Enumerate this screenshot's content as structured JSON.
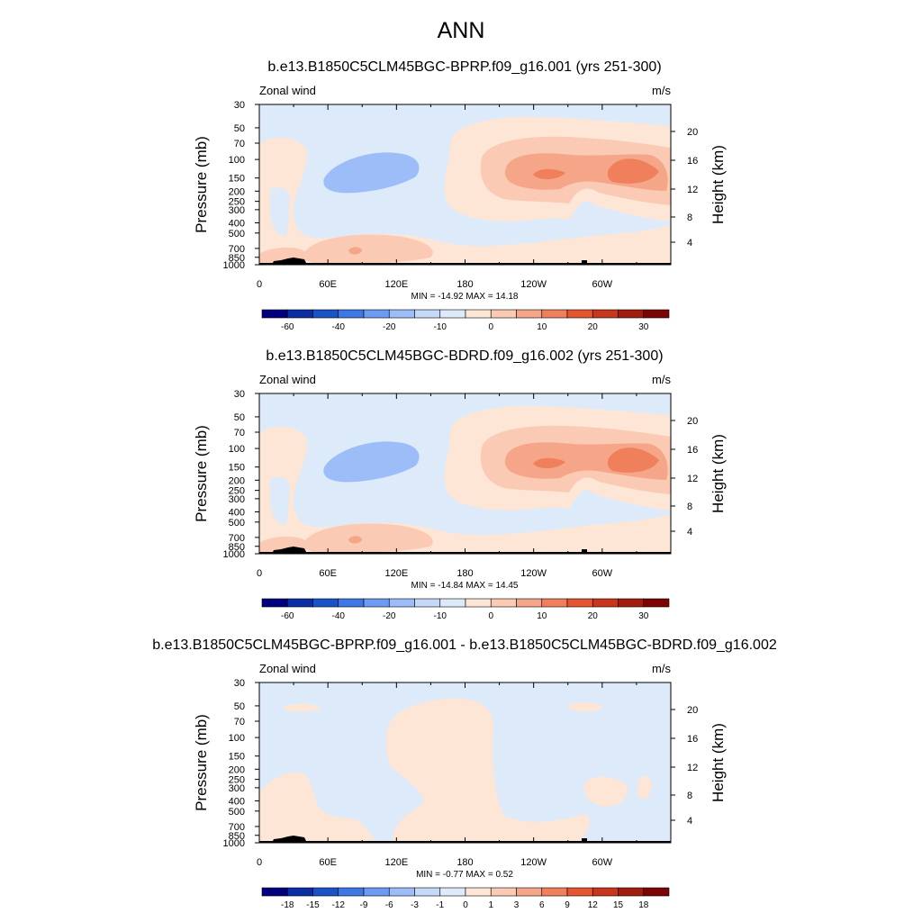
{
  "figure": {
    "title": "ANN"
  },
  "chart_data": [
    {
      "type": "heatmap",
      "title": "b.e13.B1850C5CLM45BGC-BPRP.f09_g16.001 (yrs 251-300)",
      "left_label": "Zonal wind",
      "right_label": "m/s",
      "ylabel": "Pressure (mb)",
      "y2label": "Height (km)",
      "xticks": [
        "0",
        "60E",
        "120E",
        "180",
        "120W",
        "60W"
      ],
      "yticks": [
        "30",
        "50",
        "70",
        "100",
        "150",
        "200",
        "250",
        "300",
        "400",
        "500",
        "700",
        "850",
        "1000"
      ],
      "y2ticks": [
        "4",
        "8",
        "12",
        "16",
        "20"
      ],
      "stats": "MIN = -14.92  MAX =  14.18",
      "min": -14.92,
      "max": 14.18,
      "colorbar_labels": [
        "-60",
        "-40",
        "-20",
        "-10",
        "0",
        "10",
        "20",
        "30"
      ],
      "colors": [
        "#00007f",
        "#0a2fa5",
        "#1a52c8",
        "#3e78e4",
        "#6b9bf2",
        "#9dbdf8",
        "#c5daf9",
        "#dceafa",
        "#fde6d6",
        "#fbcab5",
        "#f6a688",
        "#f07f5b",
        "#e45530",
        "#c8361b",
        "#a21d0d",
        "#7c0404"
      ]
    },
    {
      "type": "heatmap",
      "title": "b.e13.B1850C5CLM45BGC-BDRD.f09_g16.002 (yrs 251-300)",
      "left_label": "Zonal wind",
      "right_label": "m/s",
      "ylabel": "Pressure (mb)",
      "y2label": "Height (km)",
      "xticks": [
        "0",
        "60E",
        "120E",
        "180",
        "120W",
        "60W"
      ],
      "yticks": [
        "30",
        "50",
        "70",
        "100",
        "150",
        "200",
        "250",
        "300",
        "400",
        "500",
        "700",
        "850",
        "1000"
      ],
      "y2ticks": [
        "4",
        "8",
        "12",
        "16",
        "20"
      ],
      "stats": "MIN = -14.84  MAX =  14.45",
      "min": -14.84,
      "max": 14.45,
      "colorbar_labels": [
        "-60",
        "-40",
        "-20",
        "-10",
        "0",
        "10",
        "20",
        "30"
      ],
      "colors": [
        "#00007f",
        "#0a2fa5",
        "#1a52c8",
        "#3e78e4",
        "#6b9bf2",
        "#9dbdf8",
        "#c5daf9",
        "#dceafa",
        "#fde6d6",
        "#fbcab5",
        "#f6a688",
        "#f07f5b",
        "#e45530",
        "#c8361b",
        "#a21d0d",
        "#7c0404"
      ]
    },
    {
      "type": "heatmap",
      "title": "b.e13.B1850C5CLM45BGC-BPRP.f09_g16.001 - b.e13.B1850C5CLM45BGC-BDRD.f09_g16.002",
      "left_label": "Zonal wind",
      "right_label": "m/s",
      "ylabel": "Pressure (mb)",
      "y2label": "Height (km)",
      "xticks": [
        "0",
        "60E",
        "120E",
        "180",
        "120W",
        "60W"
      ],
      "yticks": [
        "30",
        "50",
        "70",
        "100",
        "150",
        "200",
        "250",
        "300",
        "400",
        "500",
        "700",
        "850",
        "1000"
      ],
      "y2ticks": [
        "4",
        "8",
        "12",
        "16",
        "20"
      ],
      "stats": "MIN =  -0.77  MAX =   0.52",
      "min": -0.77,
      "max": 0.52,
      "colorbar_labels": [
        "-18",
        "-15",
        "-12",
        "-9",
        "-6",
        "-3",
        "-1",
        "0",
        "1",
        "3",
        "6",
        "9",
        "12",
        "15",
        "18"
      ],
      "colors": [
        "#00007f",
        "#0a2fa5",
        "#1a52c8",
        "#3e78e4",
        "#6b9bf2",
        "#9dbdf8",
        "#c5daf9",
        "#dceafa",
        "#fde6d6",
        "#fbcab5",
        "#f6a688",
        "#f07f5b",
        "#e45530",
        "#c8361b",
        "#a21d0d",
        "#7c0404"
      ]
    }
  ]
}
